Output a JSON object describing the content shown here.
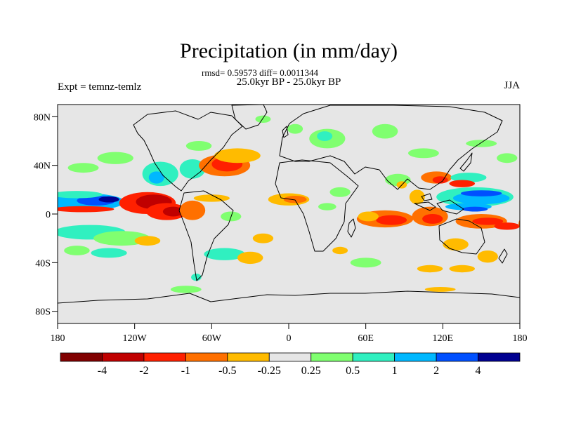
{
  "chart_data": {
    "type": "heatmap",
    "title": "Precipitation (in mm/day)",
    "stats_line": "rmsd= 0.59573 diff= 0.0011344",
    "subtitle": "25.0kyr BP - 25.0kyr BP",
    "left_label": "Expt = temnz-temlz",
    "right_label": "JJA",
    "x_ticks": [
      {
        "value": -180,
        "label": "180"
      },
      {
        "value": -120,
        "label": "120W"
      },
      {
        "value": -60,
        "label": "60W"
      },
      {
        "value": 0,
        "label": "0"
      },
      {
        "value": 60,
        "label": "60E"
      },
      {
        "value": 120,
        "label": "120E"
      },
      {
        "value": 180,
        "label": "180"
      }
    ],
    "y_ticks": [
      {
        "value": 80,
        "label": "80N"
      },
      {
        "value": 40,
        "label": "40N"
      },
      {
        "value": 0,
        "label": "0"
      },
      {
        "value": -40,
        "label": "40S"
      },
      {
        "value": -80,
        "label": "80S"
      }
    ],
    "xlim": [
      -180,
      180
    ],
    "ylim": [
      -90,
      90
    ],
    "colorbar": {
      "colors": [
        "#800000",
        "#c00000",
        "#ff2000",
        "#ff7000",
        "#ffbb00",
        "#e6e6e6",
        "#80ff70",
        "#30f0c0",
        "#00b8ff",
        "#0050ff",
        "#000090"
      ],
      "labels": [
        "-4",
        "-2",
        "-1",
        "-0.5",
        "-0.25",
        "0.25",
        "0.5",
        "1",
        "2",
        "4"
      ]
    },
    "anomaly_patches": [
      {
        "lon": -158,
        "lat": 10,
        "rx": 30,
        "ry": 7,
        "level": 8
      },
      {
        "lon": -150,
        "lat": 11,
        "rx": 15,
        "ry": 4,
        "level": 9
      },
      {
        "lon": -140,
        "lat": 12,
        "rx": 8,
        "ry": 2.5,
        "level": 10
      },
      {
        "lon": -165,
        "lat": 16,
        "rx": 20,
        "ry": 3,
        "level": 7
      },
      {
        "lon": -160,
        "lat": 4,
        "rx": 24,
        "ry": 2.5,
        "level": 2
      },
      {
        "lon": -110,
        "lat": 9,
        "rx": 22,
        "ry": 9,
        "level": 2
      },
      {
        "lon": -105,
        "lat": 10,
        "rx": 14,
        "ry": 6,
        "level": 1
      },
      {
        "lon": -95,
        "lat": 2,
        "rx": 16,
        "ry": 7,
        "level": 2
      },
      {
        "lon": -90,
        "lat": 2,
        "rx": 8,
        "ry": 4,
        "level": 1
      },
      {
        "lon": -75,
        "lat": 3,
        "rx": 10,
        "ry": 8,
        "level": 3
      },
      {
        "lon": -100,
        "lat": 33,
        "rx": 14,
        "ry": 10,
        "level": 7
      },
      {
        "lon": -103,
        "lat": 30,
        "rx": 6,
        "ry": 5,
        "level": 8
      },
      {
        "lon": -135,
        "lat": 46,
        "rx": 14,
        "ry": 5,
        "level": 6
      },
      {
        "lon": -160,
        "lat": 38,
        "rx": 12,
        "ry": 4,
        "level": 6
      },
      {
        "lon": -75,
        "lat": 37,
        "rx": 10,
        "ry": 8,
        "level": 7
      },
      {
        "lon": -50,
        "lat": 40,
        "rx": 20,
        "ry": 9,
        "level": 3
      },
      {
        "lon": -48,
        "lat": 41,
        "rx": 12,
        "ry": 6,
        "level": 2
      },
      {
        "lon": -40,
        "lat": 48,
        "rx": 18,
        "ry": 6,
        "level": 4
      },
      {
        "lon": -70,
        "lat": 56,
        "rx": 10,
        "ry": 4,
        "level": 6
      },
      {
        "lon": -60,
        "lat": 13,
        "rx": 14,
        "ry": 3,
        "level": 4
      },
      {
        "lon": -45,
        "lat": -2,
        "rx": 8,
        "ry": 4,
        "level": 6
      },
      {
        "lon": -155,
        "lat": -15,
        "rx": 28,
        "ry": 6,
        "level": 7
      },
      {
        "lon": -130,
        "lat": -20,
        "rx": 22,
        "ry": 6,
        "level": 6
      },
      {
        "lon": -140,
        "lat": -32,
        "rx": 14,
        "ry": 4,
        "level": 7
      },
      {
        "lon": -110,
        "lat": -22,
        "rx": 10,
        "ry": 4,
        "level": 4
      },
      {
        "lon": -165,
        "lat": -30,
        "rx": 10,
        "ry": 4,
        "level": 6
      },
      {
        "lon": -50,
        "lat": -33,
        "rx": 16,
        "ry": 5,
        "level": 7
      },
      {
        "lon": -30,
        "lat": -36,
        "rx": 10,
        "ry": 5,
        "level": 4
      },
      {
        "lon": -20,
        "lat": -20,
        "rx": 8,
        "ry": 4,
        "level": 4
      },
      {
        "lon": -80,
        "lat": -62,
        "rx": 12,
        "ry": 3,
        "level": 6
      },
      {
        "lon": -72,
        "lat": -52,
        "rx": 4,
        "ry": 3,
        "level": 7
      },
      {
        "lon": 0,
        "lat": 12,
        "rx": 16,
        "ry": 5,
        "level": 4
      },
      {
        "lon": 5,
        "lat": 12,
        "rx": 9,
        "ry": 3,
        "level": 3
      },
      {
        "lon": 30,
        "lat": 6,
        "rx": 7,
        "ry": 3,
        "level": 6
      },
      {
        "lon": 30,
        "lat": 62,
        "rx": 14,
        "ry": 8,
        "level": 6
      },
      {
        "lon": 28,
        "lat": 64,
        "rx": 6,
        "ry": 4,
        "level": 7
      },
      {
        "lon": 5,
        "lat": 70,
        "rx": 6,
        "ry": 4,
        "level": 6
      },
      {
        "lon": -20,
        "lat": 78,
        "rx": 6,
        "ry": 3,
        "level": 6
      },
      {
        "lon": 75,
        "lat": 68,
        "rx": 10,
        "ry": 6,
        "level": 6
      },
      {
        "lon": 105,
        "lat": 50,
        "rx": 12,
        "ry": 4,
        "level": 6
      },
      {
        "lon": 150,
        "lat": 58,
        "rx": 12,
        "ry": 3,
        "level": 6
      },
      {
        "lon": 170,
        "lat": 46,
        "rx": 8,
        "ry": 4,
        "level": 6
      },
      {
        "lon": 85,
        "lat": 28,
        "rx": 10,
        "ry": 5,
        "level": 6
      },
      {
        "lon": 88,
        "lat": 24,
        "rx": 4,
        "ry": 3,
        "level": 4
      },
      {
        "lon": 115,
        "lat": 30,
        "rx": 12,
        "ry": 5,
        "level": 3
      },
      {
        "lon": 118,
        "lat": 28,
        "rx": 6,
        "ry": 3,
        "level": 2
      },
      {
        "lon": 140,
        "lat": 30,
        "rx": 14,
        "ry": 4,
        "level": 7
      },
      {
        "lon": 135,
        "lat": 25,
        "rx": 10,
        "ry": 3,
        "level": 2
      },
      {
        "lon": 100,
        "lat": 14,
        "rx": 6,
        "ry": 6,
        "level": 4
      },
      {
        "lon": 145,
        "lat": 14,
        "rx": 30,
        "ry": 8,
        "level": 7
      },
      {
        "lon": 150,
        "lat": 13,
        "rx": 22,
        "ry": 5,
        "level": 8
      },
      {
        "lon": 150,
        "lat": 17,
        "rx": 16,
        "ry": 2.5,
        "level": 9
      },
      {
        "lon": 140,
        "lat": 6,
        "rx": 18,
        "ry": 3,
        "level": 8
      },
      {
        "lon": 145,
        "lat": 4,
        "rx": 10,
        "ry": 2,
        "level": 9
      },
      {
        "lon": 75,
        "lat": -4,
        "rx": 22,
        "ry": 7,
        "level": 3
      },
      {
        "lon": 80,
        "lat": -5,
        "rx": 12,
        "ry": 4,
        "level": 2
      },
      {
        "lon": 110,
        "lat": -2,
        "rx": 14,
        "ry": 8,
        "level": 3
      },
      {
        "lon": 112,
        "lat": -4,
        "rx": 8,
        "ry": 4,
        "level": 2
      },
      {
        "lon": 150,
        "lat": -6,
        "rx": 20,
        "ry": 6,
        "level": 3
      },
      {
        "lon": 155,
        "lat": -6,
        "rx": 12,
        "ry": 3,
        "level": 2
      },
      {
        "lon": 170,
        "lat": -10,
        "rx": 10,
        "ry": 3,
        "level": 2
      },
      {
        "lon": 62,
        "lat": -2,
        "rx": 8,
        "ry": 4,
        "level": 4
      },
      {
        "lon": 40,
        "lat": 18,
        "rx": 8,
        "ry": 4,
        "level": 6
      },
      {
        "lon": 130,
        "lat": -25,
        "rx": 10,
        "ry": 5,
        "level": 4
      },
      {
        "lon": 155,
        "lat": -35,
        "rx": 8,
        "ry": 5,
        "level": 4
      },
      {
        "lon": 60,
        "lat": -40,
        "rx": 12,
        "ry": 4,
        "level": 6
      },
      {
        "lon": 110,
        "lat": -45,
        "rx": 10,
        "ry": 3,
        "level": 4
      },
      {
        "lon": 135,
        "lat": -45,
        "rx": 10,
        "ry": 3,
        "level": 4
      },
      {
        "lon": 40,
        "lat": -30,
        "rx": 6,
        "ry": 3,
        "level": 4
      },
      {
        "lon": 118,
        "lat": -62,
        "rx": 12,
        "ry": 2,
        "level": 4
      },
      {
        "lon": 185,
        "lat": -8,
        "rx": 6,
        "ry": 6,
        "level": 3
      }
    ]
  }
}
